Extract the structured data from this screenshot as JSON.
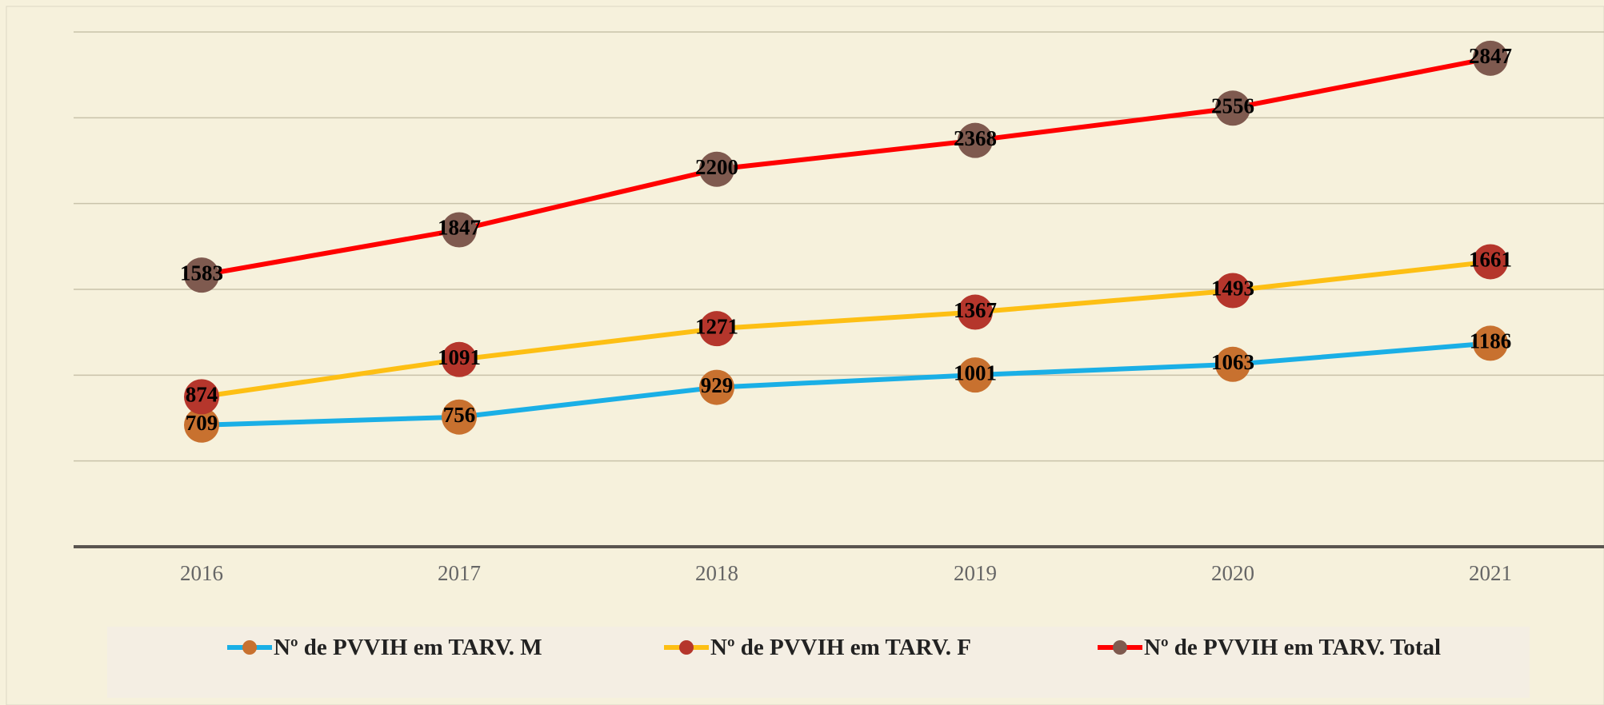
{
  "chart_data": {
    "type": "line",
    "categories": [
      "2016",
      "2017",
      "2018",
      "2019",
      "2020",
      "2021"
    ],
    "series": [
      {
        "name": "Nº de PVVIH em TARV. M",
        "color": "#1aafe6",
        "marker_color": "#c8712f",
        "values": [
          709,
          756,
          929,
          1001,
          1063,
          1186
        ]
      },
      {
        "name": "Nº de PVVIH em TARV. F",
        "color": "#fdbf14",
        "marker_color": "#b5362c",
        "values": [
          874,
          1091,
          1271,
          1367,
          1493,
          1661
        ]
      },
      {
        "name": "Nº de PVVIH em TARV. Total",
        "color": "#ff0000",
        "marker_color": "#7f5a4f",
        "values": [
          1583,
          1847,
          2200,
          2368,
          2556,
          2847
        ]
      }
    ],
    "ylim": [
      0,
      3000
    ],
    "yticks": [
      0,
      500,
      1000,
      1500,
      2000,
      2500,
      3000
    ],
    "grid": true,
    "legend": "bottom"
  }
}
